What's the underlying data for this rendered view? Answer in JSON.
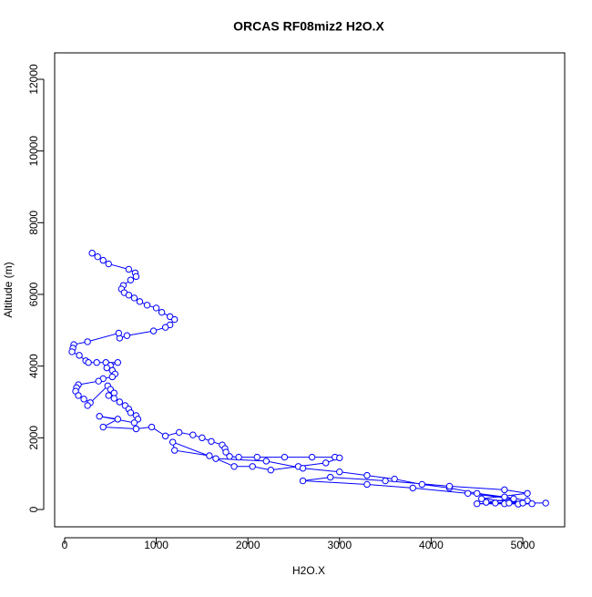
{
  "chart_data": {
    "type": "line",
    "title": "ORCAS RF08miz2 H2O.X",
    "x_label": "H2O.X",
    "y_label": "Altitude (m)",
    "color": "#0000ff",
    "markers": true,
    "x": [
      300,
      360,
      420,
      480,
      700,
      770,
      780,
      720,
      640,
      620,
      650,
      700,
      760,
      820,
      900,
      1000,
      1060,
      1150,
      1200,
      1150,
      1100,
      970,
      680,
      600,
      590,
      250,
      100,
      90,
      80,
      160,
      230,
      260,
      350,
      450,
      580,
      500,
      460,
      520,
      550,
      520,
      420,
      370,
      150,
      130,
      120,
      150,
      210,
      280,
      250,
      470,
      500,
      540,
      480,
      540,
      600,
      660,
      700,
      720,
      780,
      800,
      760,
      380,
      580,
      420,
      780,
      950,
      1100,
      1250,
      1400,
      1500,
      1600,
      1720,
      1750,
      1760,
      1800,
      1900,
      2100,
      2400,
      2700,
      2950,
      3000,
      2850,
      2550,
      2250,
      2050,
      1850,
      1580,
      1200,
      1180,
      1650,
      2200,
      2600,
      3000,
      3300,
      3600,
      3900,
      4200,
      4500,
      4800,
      5050,
      4700,
      4500,
      4800,
      5100,
      4950,
      4600,
      4900,
      4400,
      3800,
      3300,
      2600,
      2900,
      3500,
      4200,
      4800,
      5050,
      4550,
      5000,
      5250,
      4850
    ],
    "y": [
      7150,
      7050,
      6950,
      6850,
      6700,
      6600,
      6500,
      6400,
      6250,
      6150,
      6050,
      5980,
      5900,
      5800,
      5700,
      5620,
      5500,
      5380,
      5300,
      5150,
      5080,
      4980,
      4850,
      4780,
      4920,
      4680,
      4600,
      4500,
      4400,
      4300,
      4150,
      4100,
      4100,
      4100,
      4100,
      4020,
      3950,
      3880,
      3780,
      3700,
      3650,
      3580,
      3480,
      3400,
      3300,
      3180,
      3080,
      2980,
      2900,
      3450,
      3350,
      3250,
      3180,
      3100,
      3000,
      2900,
      2800,
      2700,
      2620,
      2520,
      2420,
      2600,
      2520,
      2300,
      2250,
      2300,
      2050,
      2150,
      2080,
      2000,
      1900,
      1800,
      1700,
      1600,
      1480,
      1460,
      1460,
      1460,
      1460,
      1460,
      1440,
      1300,
      1200,
      1100,
      1200,
      1200,
      1500,
      1650,
      1880,
      1420,
      1350,
      1150,
      1050,
      950,
      850,
      700,
      600,
      450,
      350,
      250,
      180,
      160,
      160,
      160,
      150,
      200,
      300,
      450,
      600,
      700,
      800,
      900,
      800,
      650,
      550,
      450,
      300,
      180,
      180,
      180
    ],
    "xlim": [
      -109,
      5457
    ],
    "ylim": [
      -483,
      12737
    ],
    "xticks": [
      0,
      1000,
      2000,
      3000,
      4000,
      5000
    ],
    "yticks": [
      0,
      2000,
      4000,
      6000,
      8000,
      10000,
      12000
    ]
  }
}
